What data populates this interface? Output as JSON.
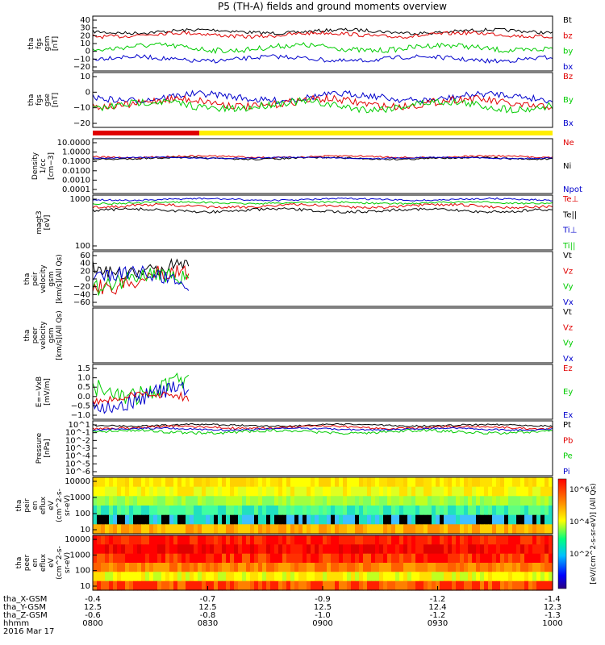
{
  "title": "P5 (TH-A) fields and ground moments overview",
  "time_axis": {
    "rows": [
      {
        "label": "tha_X-GSM",
        "values": [
          "-0.4",
          "-0.7",
          "-0.9",
          "-1.2",
          "-1.4"
        ]
      },
      {
        "label": "tha_Y-GSM",
        "values": [
          "12.5",
          "12.5",
          "12.5",
          "12.4",
          "12.3"
        ]
      },
      {
        "label": "tha_Z-GSM",
        "values": [
          "-0.6",
          "-0.8",
          "-1.0",
          "-1.2",
          "-1.3"
        ]
      },
      {
        "label": "hhmm",
        "values": [
          "0800",
          "0830",
          "0900",
          "0930",
          "1000"
        ]
      }
    ],
    "date": "2016 Mar 17",
    "start_minutes": 0,
    "end_minutes": 120
  },
  "colorbar_label": "[eV/(cm^2-s-sr-eV)] (All Qs)",
  "colorbar_ticks": [
    "10^6",
    "10^4",
    "10^2"
  ],
  "chart_data": [
    {
      "id": "fgs_gsm",
      "type": "line",
      "ylabel": [
        "tha",
        "fgs",
        "gsm",
        "[nT]"
      ],
      "ylim": [
        -20,
        40
      ],
      "yticks": [
        "40",
        "30",
        "20",
        "10",
        "0",
        "−10",
        "−20"
      ],
      "legend": [
        {
          "name": "Bt",
          "color": "#000000"
        },
        {
          "name": "bz",
          "color": "#e00000"
        },
        {
          "name": "by",
          "color": "#00cc00"
        },
        {
          "name": "bx",
          "color": "#0000cc"
        }
      ]
    },
    {
      "id": "fgs_gse",
      "type": "line",
      "ylabel": [
        "tha",
        "fgs",
        "gse",
        "[nT]"
      ],
      "ylim": [
        -25,
        20
      ],
      "yticks": [
        "10",
        "0",
        "−10",
        "−20"
      ],
      "legend": [
        {
          "name": "Bz",
          "color": "#e00000"
        },
        {
          "name": "By",
          "color": "#00cc00"
        },
        {
          "name": "Bx",
          "color": "#0000cc"
        }
      ]
    },
    {
      "id": "density",
      "type": "line",
      "log": true,
      "ylabel": [
        "Density",
        "1/cc",
        "[cm−3]"
      ],
      "yticks": [
        "10.0000",
        "1.0000",
        "0.1000",
        "0.0100",
        "0.0010",
        "0.0001"
      ],
      "legend": [
        {
          "name": "Ne",
          "color": "#e00000"
        },
        {
          "name": "Ni",
          "color": "#000000"
        },
        {
          "name": "Npot",
          "color": "#0000cc"
        }
      ]
    },
    {
      "id": "temperature",
      "type": "line",
      "log": true,
      "ylabel": [
        "magt3",
        "[eV]"
      ],
      "yticks": [
        "1000",
        "100"
      ],
      "legend": [
        {
          "name": "Te⊥",
          "color": "#e00000"
        },
        {
          "name": "Te||",
          "color": "#000000"
        },
        {
          "name": "Ti⊥",
          "color": "#0000cc"
        },
        {
          "name": "Ti||",
          "color": "#00cc00"
        }
      ]
    },
    {
      "id": "peir_velocity",
      "type": "line",
      "ylabel": [
        "tha",
        "peir",
        "velocity",
        "gsm",
        "[km/s](All Qs)"
      ],
      "ylim": [
        -60,
        60
      ],
      "yticks": [
        "60",
        "40",
        "20",
        "0",
        "−20",
        "−40",
        "−60"
      ],
      "legend": [
        {
          "name": "Vt",
          "color": "#000000"
        },
        {
          "name": "Vz",
          "color": "#e00000"
        },
        {
          "name": "Vy",
          "color": "#00cc00"
        },
        {
          "name": "Vx",
          "color": "#0000cc"
        }
      ]
    },
    {
      "id": "peer_velocity",
      "type": "line",
      "ylabel": [
        "tha",
        "peer",
        "velocity",
        "gsm",
        "[km/s](All Qs)"
      ],
      "yticks": [],
      "legend": [
        {
          "name": "Vt",
          "color": "#000000"
        },
        {
          "name": "Vz",
          "color": "#e00000"
        },
        {
          "name": "Vy",
          "color": "#00cc00"
        },
        {
          "name": "Vx",
          "color": "#0000cc"
        }
      ]
    },
    {
      "id": "efield",
      "type": "line",
      "ylabel": [
        "E=−VxB",
        "[mV/m]"
      ],
      "ylim": [
        -1.0,
        1.5
      ],
      "yticks": [
        "1.5",
        "1.0",
        "0.5",
        "0.0",
        "−0.5",
        "−1.0"
      ],
      "legend": [
        {
          "name": "Ez",
          "color": "#e00000"
        },
        {
          "name": "Ey",
          "color": "#00cc00"
        },
        {
          "name": "Ex",
          "color": "#0000cc"
        }
      ]
    },
    {
      "id": "pressure",
      "type": "line",
      "log": true,
      "ylabel": [
        "Pressure",
        "[nPa]"
      ],
      "yticks": [
        "10^1",
        "10^-1",
        "10^-2",
        "10^-3",
        "10^-4",
        "10^-5",
        "10^-6"
      ],
      "legend": [
        {
          "name": "Pt",
          "color": "#000000"
        },
        {
          "name": "Pb",
          "color": "#e00000"
        },
        {
          "name": "Pe",
          "color": "#00cc00"
        },
        {
          "name": "Pi",
          "color": "#0000cc"
        }
      ]
    },
    {
      "id": "peir_spec",
      "type": "heatmap",
      "ylabel": [
        "tha",
        "peir",
        "en",
        "eflux",
        "eV",
        "(cm^2-s-",
        "sr-eV)"
      ],
      "yticks": [
        "10000",
        "1000",
        "100",
        "10"
      ]
    },
    {
      "id": "peer_spec",
      "type": "heatmap",
      "ylabel": [
        "tha",
        "peer",
        "en",
        "eflux",
        "eV",
        "(cm^2-s-",
        "sr-eV)"
      ],
      "yticks": [
        "10000",
        "1000",
        "100",
        "10"
      ]
    }
  ]
}
